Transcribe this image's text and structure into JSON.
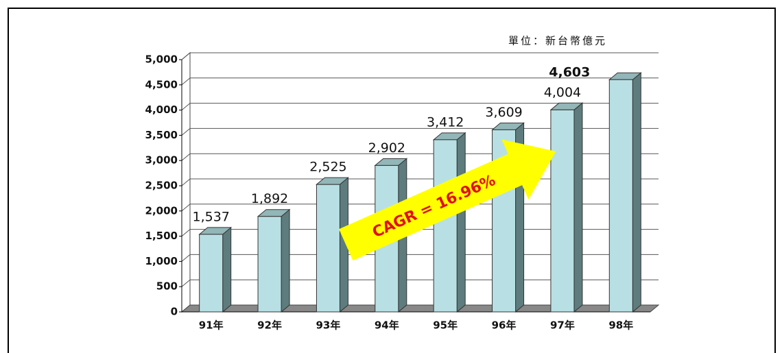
{
  "chart_data": {
    "type": "bar",
    "unit_note": "單位：新台幣億元",
    "annotation": "CAGR = 16.96%",
    "categories": [
      "91年",
      "92年",
      "93年",
      "94年",
      "95年",
      "96年",
      "97年",
      "98年"
    ],
    "values": [
      1537,
      1892,
      2525,
      2902,
      3412,
      3609,
      4004,
      4603
    ],
    "value_labels": [
      "1,537",
      "1,892",
      "2,525",
      "2,902",
      "3,412",
      "3,609",
      "4,004",
      "4,603"
    ],
    "color": "#b8e0e4",
    "ylim": [
      0,
      5000
    ],
    "yticks": [
      0,
      500,
      {
        "value": 1000,
        "label": "1,000"
      },
      {
        "value": 1500,
        "label": "1,500"
      },
      {
        "value": 2000,
        "label": "2,000"
      },
      {
        "value": 2500,
        "label": "2,500"
      },
      {
        "value": 3000,
        "label": "3,000"
      },
      {
        "value": 3500,
        "label": "3,500"
      },
      {
        "value": 4000,
        "label": "4,000"
      },
      {
        "value": 4500,
        "label": "4,500"
      },
      {
        "value": 5000,
        "label": "5,000"
      }
    ],
    "grid": true
  }
}
